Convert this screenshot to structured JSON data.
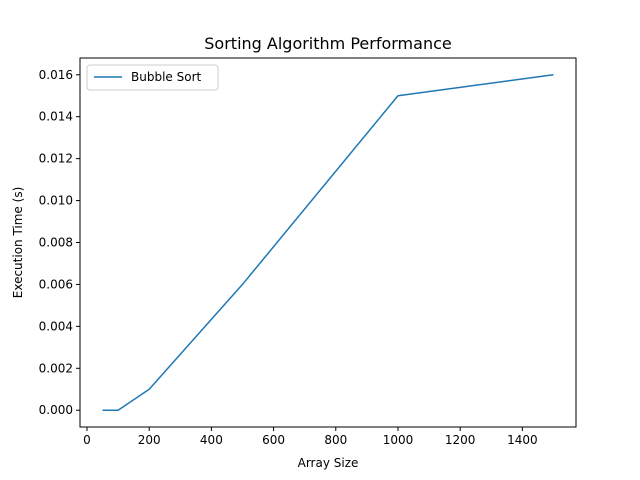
{
  "chart_data": {
    "type": "line",
    "title": "Sorting Algorithm Performance",
    "xlabel": "Array Size",
    "ylabel": "Execution Time (s)",
    "xlim": [
      -22.5,
      1572.5
    ],
    "ylim": [
      -0.0008,
      0.0168
    ],
    "xticks": [
      0,
      200,
      400,
      600,
      800,
      1000,
      1200,
      1400
    ],
    "yticks": [
      0.0,
      0.002,
      0.004,
      0.006,
      0.008,
      0.01,
      0.012,
      0.014,
      0.016
    ],
    "ytick_labels": [
      "0.000",
      "0.002",
      "0.004",
      "0.006",
      "0.008",
      "0.010",
      "0.012",
      "0.014",
      "0.016"
    ],
    "grid": false,
    "legend_position": "top-left",
    "series": [
      {
        "name": "Bubble Sort",
        "color": "#1f77b4",
        "x": [
          50,
          100,
          200,
          500,
          1000,
          1500
        ],
        "y": [
          0.0,
          0.0,
          0.001,
          0.006,
          0.015,
          0.016
        ]
      }
    ]
  }
}
